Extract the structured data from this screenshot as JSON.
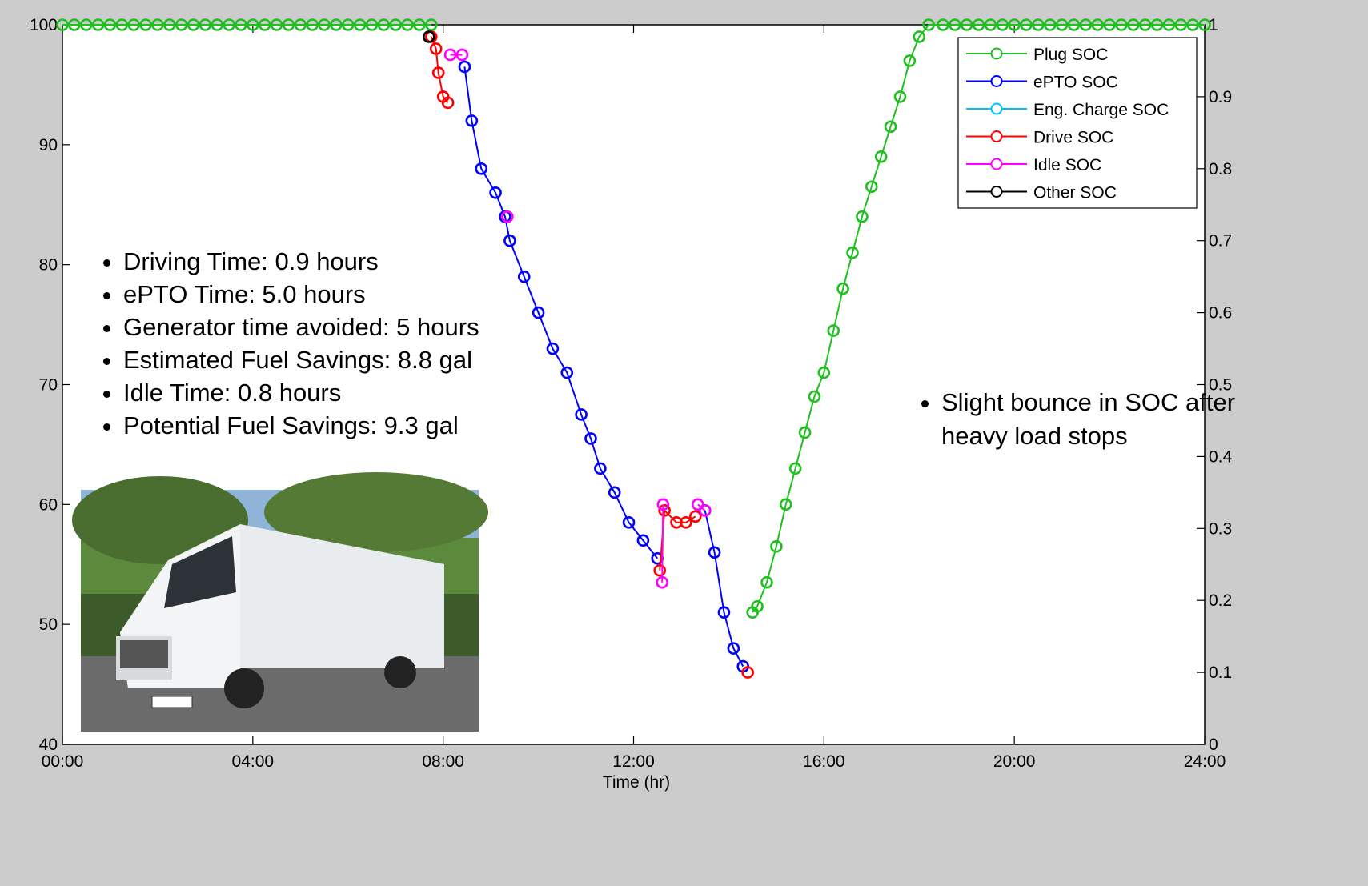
{
  "chart_data": {
    "type": "line",
    "xlabel": "Time (hr)",
    "xlim": [
      0,
      24
    ],
    "xticks": [
      {
        "value": 0,
        "label": "00:00"
      },
      {
        "value": 4,
        "label": "04:00"
      },
      {
        "value": 8,
        "label": "08:00"
      },
      {
        "value": 12,
        "label": "12:00"
      },
      {
        "value": 16,
        "label": "16:00"
      },
      {
        "value": 20,
        "label": "20:00"
      },
      {
        "value": 24,
        "label": "24:00"
      }
    ],
    "ylim": [
      40,
      100
    ],
    "yticks": [
      40,
      50,
      60,
      70,
      80,
      90,
      100
    ],
    "y2lim": [
      0,
      1
    ],
    "y2ticks": [
      0,
      0.1,
      0.2,
      0.3,
      0.4,
      0.5,
      0.6,
      0.7,
      0.8,
      0.9,
      1
    ],
    "legend": "upper right",
    "series": [
      {
        "name": "Plug SOC",
        "color": "#1fc01f",
        "x": [
          0,
          0.25,
          0.5,
          0.75,
          1,
          1.25,
          1.5,
          1.75,
          2,
          2.25,
          2.5,
          2.75,
          3,
          3.25,
          3.5,
          3.75,
          4,
          4.25,
          4.5,
          4.75,
          5,
          5.25,
          5.5,
          5.75,
          6,
          6.25,
          6.5,
          6.75,
          7,
          7.25,
          7.5,
          7.75,
          null,
          14.5,
          14.6,
          14.8,
          15.0,
          15.2,
          15.4,
          15.6,
          15.8,
          16.0,
          16.2,
          16.4,
          16.6,
          16.8,
          17.0,
          17.2,
          17.4,
          17.6,
          17.8,
          18.0,
          18.2,
          18.5,
          18.75,
          19,
          19.25,
          19.5,
          19.75,
          20,
          20.25,
          20.5,
          20.75,
          21,
          21.25,
          21.5,
          21.75,
          22,
          22.25,
          22.5,
          22.75,
          23,
          23.25,
          23.5,
          23.75,
          24
        ],
        "values": [
          100,
          100,
          100,
          100,
          100,
          100,
          100,
          100,
          100,
          100,
          100,
          100,
          100,
          100,
          100,
          100,
          100,
          100,
          100,
          100,
          100,
          100,
          100,
          100,
          100,
          100,
          100,
          100,
          100,
          100,
          100,
          100,
          null,
          51,
          51.5,
          53.5,
          56.5,
          60,
          63,
          66,
          69,
          71,
          74.5,
          78,
          81,
          84,
          86.5,
          89,
          91.5,
          94,
          97,
          99,
          100,
          100,
          100,
          100,
          100,
          100,
          100,
          100,
          100,
          100,
          100,
          100,
          100,
          100,
          100,
          100,
          100,
          100,
          100,
          100,
          100,
          100,
          100,
          100
        ]
      },
      {
        "name": "ePTO SOC",
        "color": "#0000ff",
        "x": [
          8.45,
          8.6,
          8.8,
          9.1,
          9.3,
          9.4,
          9.7,
          10.0,
          10.3,
          10.6,
          10.9,
          11.1,
          11.3,
          11.6,
          11.9,
          12.2,
          12.5,
          null,
          13.5,
          13.7,
          13.9,
          14.1,
          14.3
        ],
        "values": [
          96.5,
          92,
          88,
          86,
          84,
          82,
          79,
          76,
          73,
          71,
          67.5,
          65.5,
          63,
          61,
          58.5,
          57,
          55.5,
          null,
          59.5,
          56,
          51,
          48,
          46.5
        ]
      },
      {
        "name": "Eng. Charge SOC",
        "color": "#00bfff",
        "x": [],
        "values": []
      },
      {
        "name": "Drive SOC",
        "color": "#ff0000",
        "x": [
          7.75,
          7.85,
          7.9,
          8.0,
          8.1,
          null,
          12.55,
          12.65,
          12.9,
          13.1,
          13.3,
          null,
          14.4
        ],
        "values": [
          99,
          98,
          96,
          94,
          93.5,
          null,
          54.5,
          59.5,
          58.5,
          58.5,
          59,
          null,
          46
        ]
      },
      {
        "name": "Idle SOC",
        "color": "#ff00ff",
        "x": [
          8.15,
          8.4,
          null,
          9.35,
          null,
          12.6,
          12.62,
          null,
          13.35,
          13.5
        ],
        "values": [
          97.5,
          97.5,
          null,
          84,
          null,
          53.5,
          60,
          null,
          60,
          59.5
        ]
      },
      {
        "name": "Other SOC",
        "color": "#000000",
        "x": [
          7.7
        ],
        "values": [
          99
        ]
      }
    ],
    "annotations": [
      "Driving Time: 0.9 hours",
      "ePTO Time: 5.0 hours",
      "Generator time avoided: 5 hours",
      "Estimated Fuel Savings: 8.8 gal",
      "Idle Time: 0.8 hours",
      "Potential Fuel Savings: 9.3 gal"
    ],
    "note": "Slight bounce in SOC after heavy load stops"
  }
}
